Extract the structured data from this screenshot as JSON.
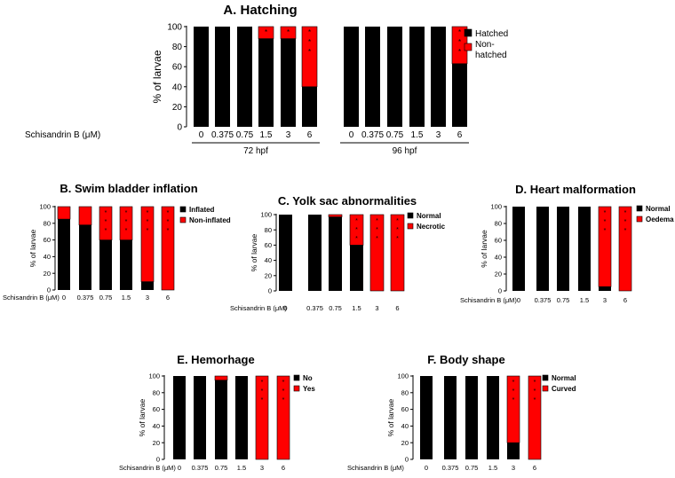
{
  "colors": {
    "hatched": "#000000",
    "nonhatched": "#ff0000"
  },
  "chart_data": [
    {
      "id": "A",
      "type": "bar",
      "stacked": true,
      "title": "A. Hatching",
      "ylabel": "% of larvae",
      "ylim": [
        0,
        100
      ],
      "yticks": [
        "0",
        "20",
        "40",
        "60",
        "80",
        "100"
      ],
      "xlabel": "Schisandrin B (μM)",
      "categories": [
        "0",
        "0.375",
        "0.75",
        "1.5",
        "3",
        "6"
      ],
      "groups": [
        {
          "label": "72 hpf",
          "values": [
            100,
            100,
            100,
            88,
            88,
            40
          ]
        },
        {
          "label": "96 hpf",
          "values": [
            100,
            100,
            100,
            100,
            100,
            63
          ]
        }
      ],
      "significance": [
        {
          "group": 0,
          "category": 3,
          "marks": "*"
        },
        {
          "group": 0,
          "category": 4,
          "marks": "*"
        },
        {
          "group": 0,
          "category": 5,
          "marks": "***"
        },
        {
          "group": 1,
          "category": 5,
          "marks": "***"
        }
      ],
      "legend": [
        "Hatched",
        "Non-\nhatched"
      ],
      "legend_position": "right"
    },
    {
      "id": "B",
      "type": "bar",
      "stacked": true,
      "title": "B. Swim bladder inflation",
      "ylabel": "% of larvae",
      "ylim": [
        0,
        100
      ],
      "yticks": [
        "0",
        "20",
        "40",
        "60",
        "80",
        "100"
      ],
      "xlabel": "Schisandrin B (μM)",
      "categories": [
        "0",
        "0.375",
        "0.75",
        "1.5",
        "3",
        "6"
      ],
      "values": [
        85,
        78,
        60,
        60,
        10,
        0
      ],
      "significance": [
        {
          "category": 2,
          "marks": "***"
        },
        {
          "category": 3,
          "marks": "***"
        },
        {
          "category": 4,
          "marks": "***"
        },
        {
          "category": 5,
          "marks": "***"
        }
      ],
      "legend": [
        "Inflated",
        "Non-inflated"
      ],
      "legend_position": "right"
    },
    {
      "id": "C",
      "type": "bar",
      "stacked": true,
      "title": "C. Yolk sac abnormalities",
      "ylabel": "% of larvae",
      "ylim": [
        0,
        100
      ],
      "yticks": [
        "0",
        "20",
        "40",
        "60",
        "80",
        "100"
      ],
      "xlabel": "Schisandrin B (μM)",
      "categories": [
        "0",
        "0.375",
        "0.75",
        "1.5",
        "3",
        "6"
      ],
      "values": [
        100,
        100,
        97,
        60,
        0,
        0
      ],
      "significance": [
        {
          "category": 3,
          "marks": "***"
        },
        {
          "category": 4,
          "marks": "***"
        },
        {
          "category": 5,
          "marks": "***"
        }
      ],
      "legend": [
        "Normal",
        "Necrotic"
      ],
      "legend_position": "right"
    },
    {
      "id": "D",
      "type": "bar",
      "stacked": true,
      "title": "D. Heart malformation",
      "ylabel": "% of larvae",
      "ylim": [
        0,
        100
      ],
      "yticks": [
        "0",
        "20",
        "40",
        "60",
        "80",
        "100"
      ],
      "xlabel": "Schisandrin B (μM)",
      "categories": [
        "0",
        "0.375",
        "0.75",
        "1.5",
        "3",
        "6"
      ],
      "values": [
        100,
        100,
        100,
        100,
        5,
        0
      ],
      "significance": [
        {
          "category": 4,
          "marks": "***"
        },
        {
          "category": 5,
          "marks": "***"
        }
      ],
      "legend": [
        "Normal",
        "Oedema"
      ],
      "legend_position": "right"
    },
    {
      "id": "E",
      "type": "bar",
      "stacked": true,
      "title": "E. Hemorhage",
      "ylabel": "% of larvae",
      "ylim": [
        0,
        100
      ],
      "yticks": [
        "0",
        "20",
        "40",
        "60",
        "80",
        "100"
      ],
      "xlabel": "Schisandrin B (μM)",
      "categories": [
        "0",
        "0.375",
        "0.75",
        "1.5",
        "3",
        "6"
      ],
      "values": [
        100,
        100,
        95,
        100,
        0,
        0
      ],
      "significance": [
        {
          "category": 4,
          "marks": "***"
        },
        {
          "category": 5,
          "marks": "***"
        }
      ],
      "legend": [
        "No",
        "Yes"
      ],
      "legend_position": "right"
    },
    {
      "id": "F",
      "type": "bar",
      "stacked": true,
      "title": "F. Body shape",
      "ylabel": "% of larvae",
      "ylim": [
        0,
        100
      ],
      "yticks": [
        "0",
        "20",
        "40",
        "60",
        "80",
        "100"
      ],
      "xlabel": "Schisandrin B (μM)",
      "categories": [
        "0",
        "0.375",
        "0.75",
        "1.5",
        "3",
        "6"
      ],
      "values": [
        100,
        100,
        100,
        100,
        20,
        0
      ],
      "significance": [
        {
          "category": 4,
          "marks": "***"
        },
        {
          "category": 5,
          "marks": "***"
        }
      ],
      "legend": [
        "Normal",
        "Curved"
      ],
      "legend_position": "right"
    }
  ]
}
